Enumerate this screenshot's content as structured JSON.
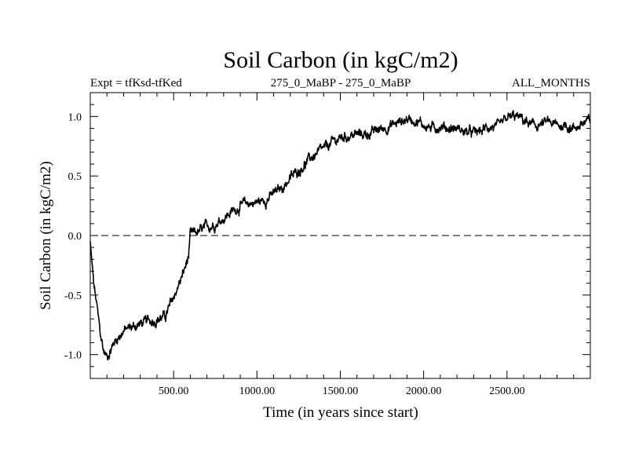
{
  "chart_data": {
    "type": "line",
    "title": "Soil Carbon (in kgC/m2)",
    "subtitle_left": "Expt = tfKsd-tfKed",
    "subtitle_center": "275_0_MaBP - 275_0_MaBP",
    "subtitle_right": "ALL_MONTHS",
    "xlabel": "Time (in years since start)",
    "ylabel": "Soil Carbon (in kgC/m2)",
    "xlim": [
      0,
      3000
    ],
    "ylim": [
      -1.2,
      1.2
    ],
    "x_ticks": [
      500,
      1000,
      1500,
      2000,
      2500
    ],
    "x_tick_labels": [
      "500.00",
      "1000.00",
      "1500.00",
      "2000.00",
      "2500.00"
    ],
    "y_ticks": [
      -1.0,
      -0.5,
      0.0,
      0.5,
      1.0
    ],
    "y_tick_labels": [
      "-1.0",
      "-0.5",
      "0.0",
      "0.5",
      "1.0"
    ],
    "reference_line": 0.0,
    "series": [
      {
        "name": "Soil Carbon",
        "color": "#000000",
        "x": [
          0,
          20,
          40,
          60,
          80,
          100,
          150,
          200,
          250,
          300,
          350,
          400,
          450,
          500,
          550,
          590,
          600,
          650,
          700,
          750,
          800,
          850,
          900,
          950,
          1000,
          1050,
          1100,
          1150,
          1200,
          1250,
          1300,
          1350,
          1400,
          1450,
          1500,
          1550,
          1600,
          1650,
          1700,
          1750,
          1800,
          1850,
          1900,
          1950,
          2000,
          2050,
          2100,
          2150,
          2200,
          2250,
          2300,
          2350,
          2400,
          2450,
          2500,
          2550,
          2600,
          2650,
          2700,
          2750,
          2800,
          2850,
          2900,
          2950,
          3000
        ],
        "values": [
          -0.05,
          -0.4,
          -0.6,
          -0.82,
          -0.97,
          -1.02,
          -0.88,
          -0.8,
          -0.77,
          -0.74,
          -0.72,
          -0.7,
          -0.68,
          -0.52,
          -0.35,
          -0.18,
          0.0,
          0.03,
          0.07,
          0.1,
          0.15,
          0.2,
          0.25,
          0.27,
          0.28,
          0.3,
          0.35,
          0.4,
          0.48,
          0.55,
          0.62,
          0.68,
          0.72,
          0.78,
          0.82,
          0.84,
          0.85,
          0.85,
          0.87,
          0.9,
          0.92,
          0.95,
          0.98,
          0.97,
          0.93,
          0.9,
          0.92,
          0.9,
          0.9,
          0.87,
          0.86,
          0.88,
          0.92,
          0.9,
          0.98,
          1.0,
          0.97,
          0.92,
          0.93,
          0.95,
          0.92,
          0.93,
          0.9,
          0.94,
          0.96
        ]
      }
    ]
  }
}
